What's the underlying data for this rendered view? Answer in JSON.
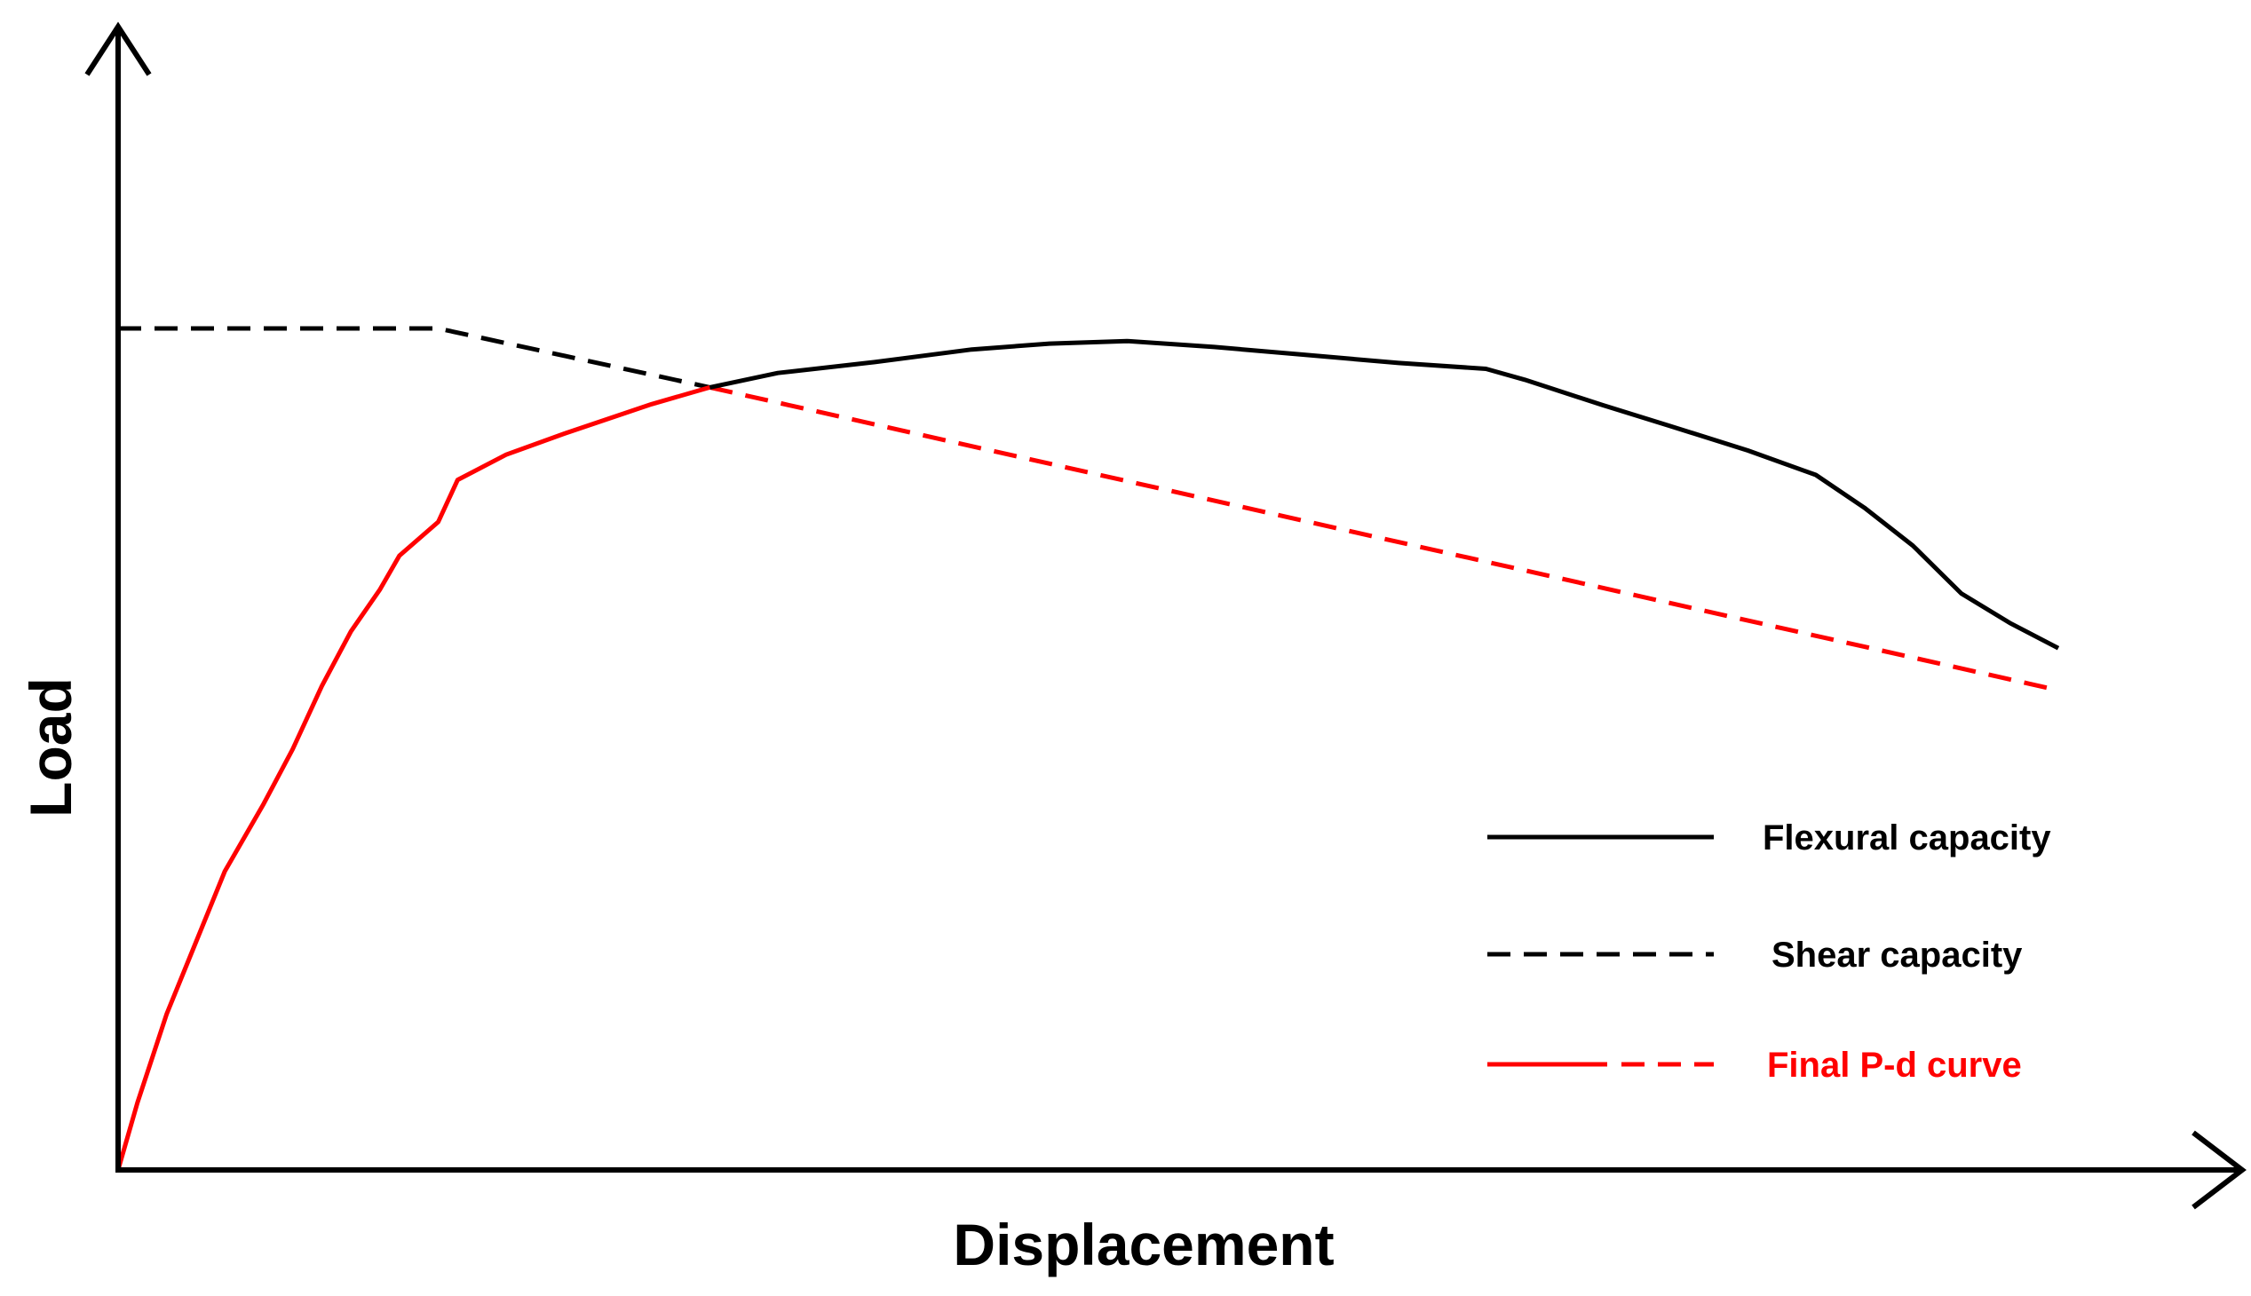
{
  "chart_data": {
    "type": "line",
    "title": "",
    "xlabel": "Displacement",
    "ylabel": "Load",
    "xlim": [
      0,
      100
    ],
    "ylim": [
      0,
      100
    ],
    "grid": false,
    "legend_position": "bottom-right",
    "colors": {
      "flexural": "#000000",
      "shear": "#000000",
      "final": "#ff0000",
      "axis": "#000000"
    },
    "series": [
      {
        "name": "Flexural capacity",
        "style": "solid",
        "color": "#000000",
        "points": [
          [
            30.5,
            93.0
          ],
          [
            34.0,
            94.7
          ],
          [
            39.0,
            96.0
          ],
          [
            44.0,
            97.5
          ],
          [
            48.0,
            98.2
          ],
          [
            52.0,
            98.5
          ],
          [
            56.5,
            97.8
          ],
          [
            61.0,
            96.9
          ],
          [
            66.0,
            95.9
          ],
          [
            70.5,
            95.2
          ],
          [
            72.5,
            93.9
          ],
          [
            76.5,
            90.9
          ],
          [
            80.0,
            88.4
          ],
          [
            84.0,
            85.5
          ],
          [
            87.5,
            82.6
          ],
          [
            90.0,
            78.7
          ],
          [
            92.5,
            74.2
          ],
          [
            95.0,
            68.5
          ],
          [
            97.5,
            65.0
          ],
          [
            100.0,
            62.0
          ]
        ]
      },
      {
        "name": "Shear capacity",
        "style": "dashed",
        "color": "#000000",
        "points": [
          [
            0,
            100.0
          ],
          [
            16.5,
            100.0
          ],
          [
            30.5,
            93.0
          ],
          [
            100,
            57.0
          ]
        ]
      },
      {
        "name": "Final P-d curve",
        "style": "solid-then-dashed",
        "color": "#ff0000",
        "points": [
          [
            0,
            0
          ],
          [
            1.0,
            8.0
          ],
          [
            2.5,
            18.5
          ],
          [
            4.0,
            27.0
          ],
          [
            5.5,
            35.5
          ],
          [
            7.5,
            43.5
          ],
          [
            9.0,
            50.0
          ],
          [
            10.5,
            57.5
          ],
          [
            12.0,
            64.0
          ],
          [
            13.5,
            69.0
          ],
          [
            14.5,
            73.0
          ],
          [
            16.5,
            77.0
          ],
          [
            17.5,
            82.0
          ],
          [
            20.0,
            85.0
          ],
          [
            23.0,
            87.5
          ],
          [
            27.5,
            91.0
          ],
          [
            30.5,
            93.0
          ]
        ],
        "dashed_points": [
          [
            30.5,
            93.0
          ],
          [
            100,
            57.0
          ]
        ]
      }
    ],
    "legend": [
      {
        "label": "Flexural capacity",
        "style": "solid",
        "color": "#000000"
      },
      {
        "label": "Shear capacity",
        "style": "dashed",
        "color": "#000000"
      },
      {
        "label": "Final P-d curve",
        "style": "solid-then-dashed",
        "color": "#ff0000"
      }
    ]
  }
}
